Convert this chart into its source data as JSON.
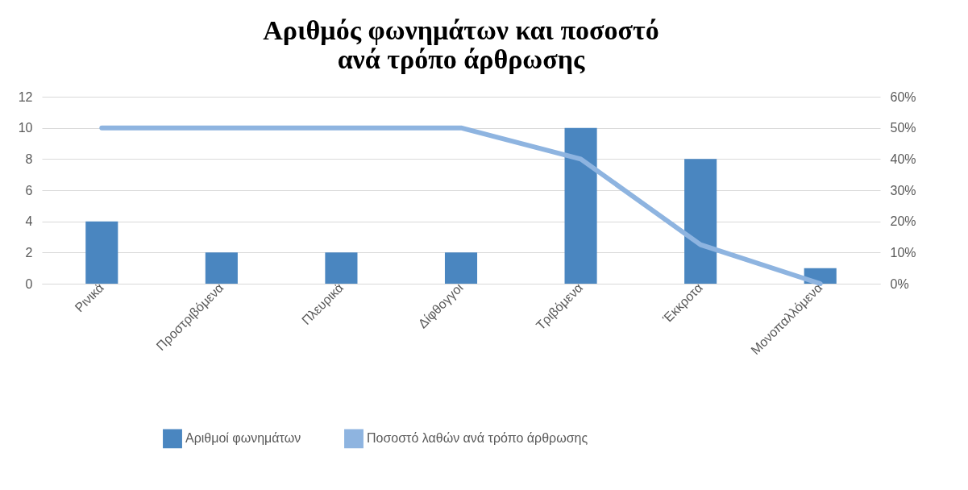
{
  "chart_data": {
    "type": "bar",
    "title": "Αριθμός φωνημάτων και ποσοστό\nανά τρόπο άρθρωσης",
    "categories": [
      "Ρινικά",
      "Προστριβόμενα",
      "Πλευρικά",
      "Δίφθογγοι",
      "Τριβόμενα",
      "Έκκροτα",
      "Μονοπαλλόμενα"
    ],
    "series": [
      {
        "name": "Αριθμοί φωνημάτων",
        "color": "#4a86c0",
        "values": [
          4,
          2,
          2,
          2,
          10,
          8,
          1
        ]
      },
      {
        "name": "Ποσοστό λαθών ανά τρόπο άρθρωσης",
        "type": "line",
        "axis": "y2",
        "color": "#8eb4e0",
        "values": [
          50,
          50,
          50,
          50,
          40,
          12.5,
          0
        ]
      }
    ],
    "ylim": [
      0,
      12
    ],
    "yticks": [
      0,
      2,
      4,
      6,
      8,
      10,
      12
    ],
    "y2lim": [
      0,
      60
    ],
    "y2ticks": [
      {
        "value": 0,
        "label": "0%"
      },
      {
        "value": 10,
        "label": "10%"
      },
      {
        "value": 20,
        "label": "20%"
      },
      {
        "value": 30,
        "label": "30%"
      },
      {
        "value": 40,
        "label": "40%"
      },
      {
        "value": 50,
        "label": "50%"
      },
      {
        "value": 60,
        "label": "60%"
      }
    ],
    "grid": "y",
    "legend": "bottom"
  }
}
